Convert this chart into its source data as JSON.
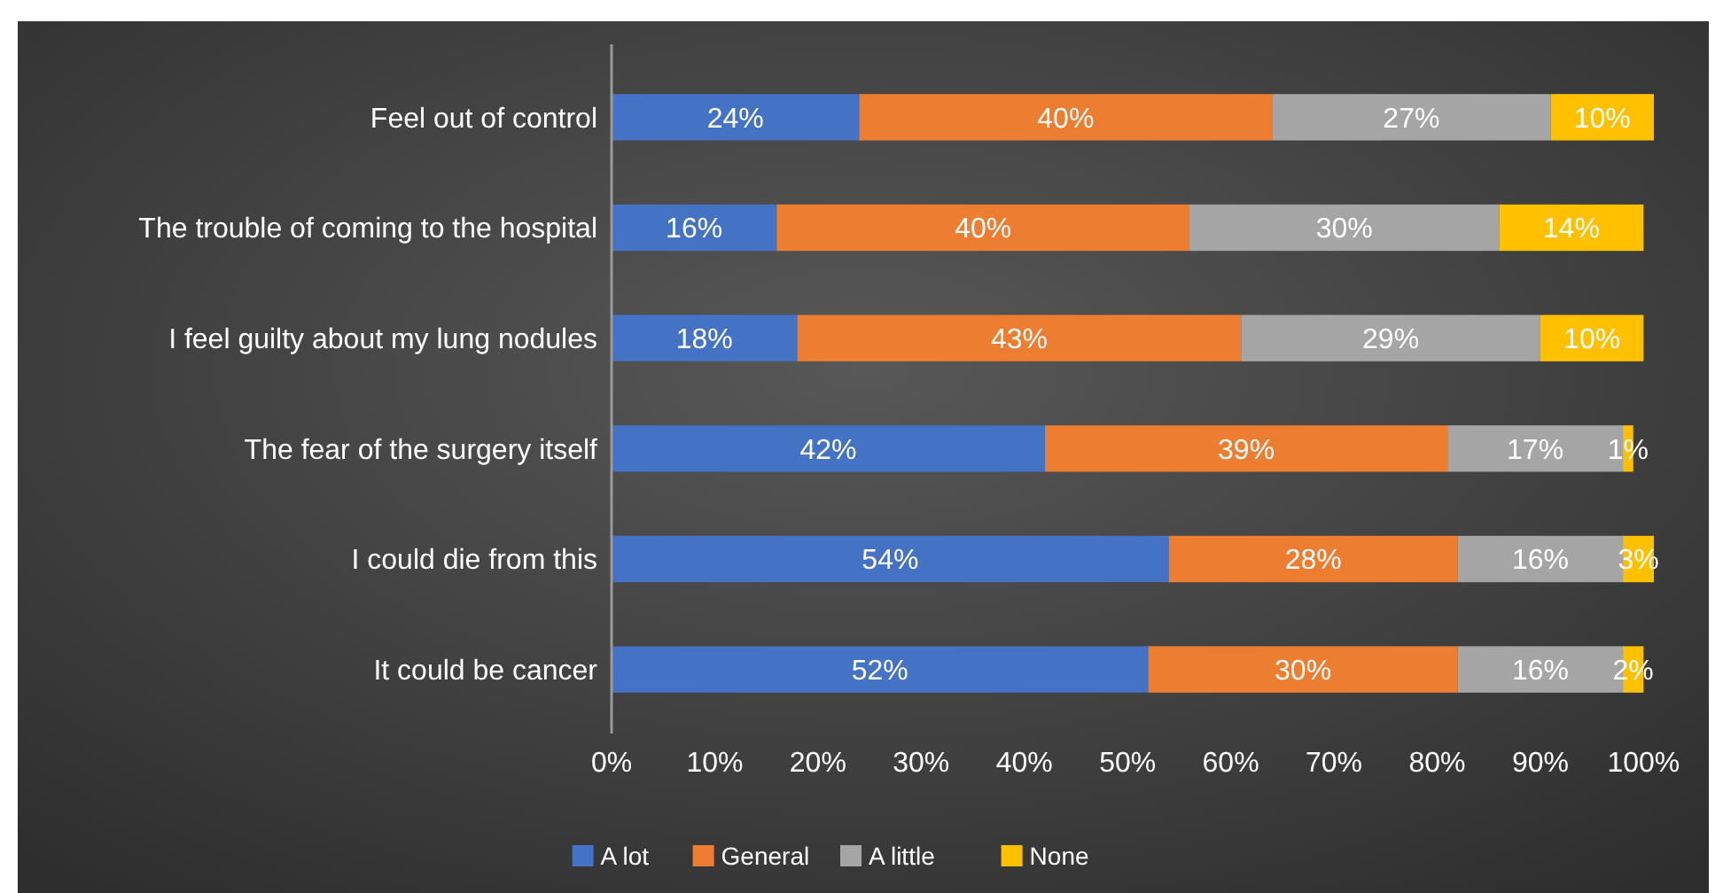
{
  "chart_data": {
    "type": "bar",
    "orientation": "horizontal",
    "stacked": true,
    "legend": "bottom",
    "grid": false,
    "categories": [
      "Feel out of control",
      "The trouble of coming to the hospital",
      "I feel guilty about my lung nodules",
      "The fear of the surgery itself",
      "I could die from this",
      "It could be cancer"
    ],
    "series": [
      {
        "name": "A lot",
        "color": "#4472c4",
        "values": [
          24,
          16,
          18,
          42,
          54,
          52
        ],
        "value_labels": [
          "24%",
          "16%",
          "18%",
          "42%",
          "54%",
          "52%"
        ]
      },
      {
        "name": "General",
        "color": "#ed7d31",
        "values": [
          40,
          40,
          43,
          39,
          28,
          30
        ],
        "value_labels": [
          "40%",
          "40%",
          "43%",
          "39%",
          "28%",
          "30%"
        ]
      },
      {
        "name": "A little",
        "color": "#a5a5a5",
        "values": [
          27,
          30,
          29,
          17,
          16,
          16
        ],
        "value_labels": [
          "27%",
          "30%",
          "29%",
          "17%",
          "16%",
          "16%"
        ]
      },
      {
        "name": "None",
        "color": "#ffc000",
        "values": [
          10,
          14,
          10,
          1,
          3,
          2
        ],
        "value_labels": [
          "10%",
          "14%",
          "10%",
          "1%",
          "3%",
          "2%"
        ]
      }
    ],
    "xlim": [
      0,
      101
    ],
    "xticks": [
      {
        "value": 0,
        "label": "0%"
      },
      {
        "value": 10,
        "label": "10%"
      },
      {
        "value": 20,
        "label": "20%"
      },
      {
        "value": 30,
        "label": "30%"
      },
      {
        "value": 40,
        "label": "40%"
      },
      {
        "value": 50,
        "label": "50%"
      },
      {
        "value": 60,
        "label": "60%"
      },
      {
        "value": 70,
        "label": "70%"
      },
      {
        "value": 80,
        "label": "80%"
      },
      {
        "value": 90,
        "label": "90%"
      },
      {
        "value": 100,
        "label": "100%"
      }
    ]
  }
}
